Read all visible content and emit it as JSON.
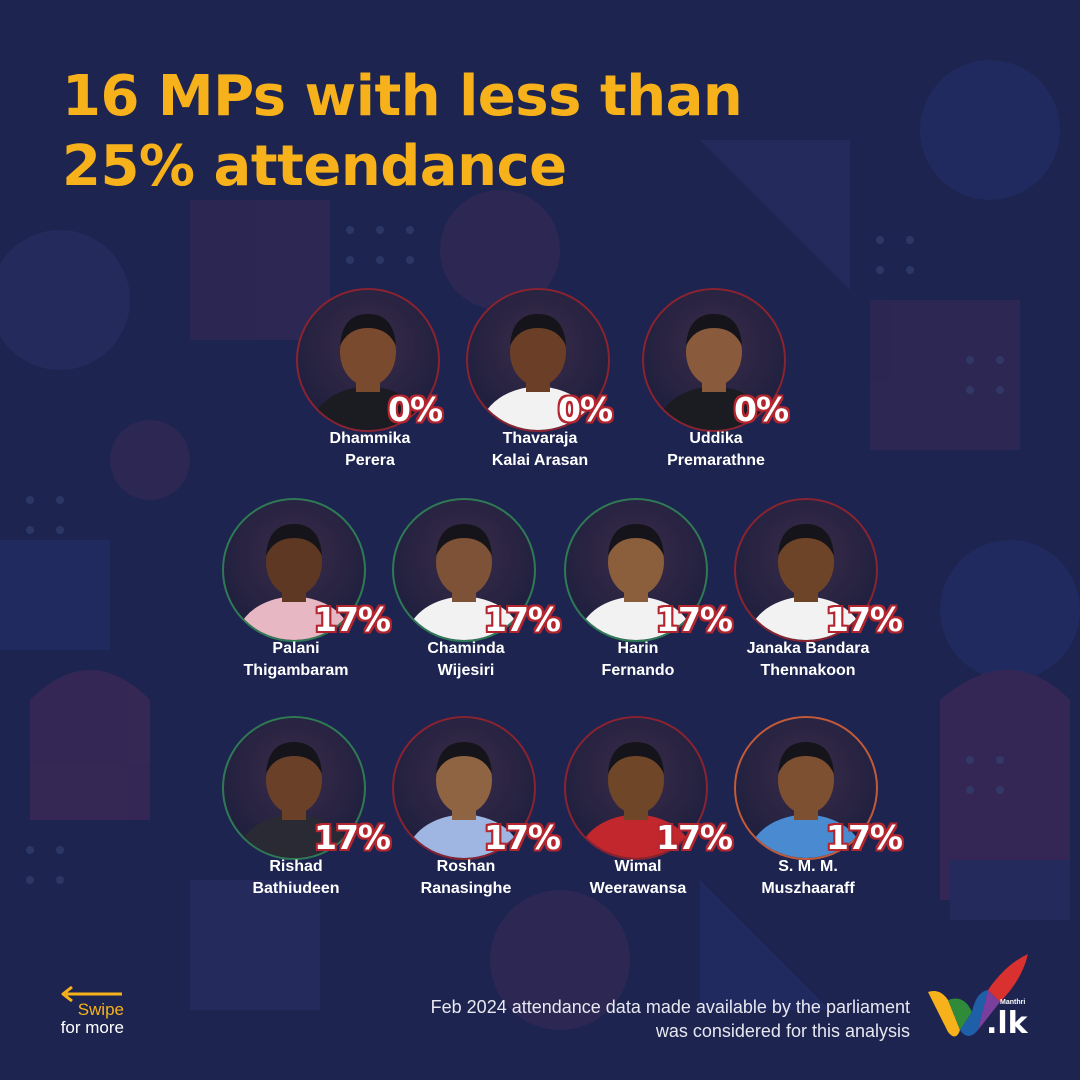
{
  "title": "16 MPs with less than 25% attendance",
  "people": [
    {
      "first": "Dhammika",
      "last": "Perera",
      "attendance": "0%",
      "ring": "red"
    },
    {
      "first": "Thavaraja",
      "last": "Kalai Arasan",
      "attendance": "0%",
      "ring": "red"
    },
    {
      "first": "Uddika",
      "last": "Premarathne",
      "attendance": "0%",
      "ring": "red"
    },
    {
      "first": "Palani",
      "last": "Thigambaram",
      "attendance": "17%",
      "ring": "green"
    },
    {
      "first": "Chaminda",
      "last": "Wijesiri",
      "attendance": "17%",
      "ring": "green"
    },
    {
      "first": "Harin",
      "last": "Fernando",
      "attendance": "17%",
      "ring": "green"
    },
    {
      "first": "Janaka Bandara",
      "last": "Thennakoon",
      "attendance": "17%",
      "ring": "red"
    },
    {
      "first": "Rishad",
      "last": "Bathiudeen",
      "attendance": "17%",
      "ring": "green"
    },
    {
      "first": "Roshan",
      "last": "Ranasinghe",
      "attendance": "17%",
      "ring": "red"
    },
    {
      "first": "Wimal",
      "last": "Weerawansa",
      "attendance": "17%",
      "ring": "red"
    },
    {
      "first": "S. M. M.",
      "last": "Muszhaaraff",
      "attendance": "17%",
      "ring": "orange"
    }
  ],
  "swipe": {
    "line1": "Swipe",
    "line2": "for more"
  },
  "footnote": {
    "line1": "Feb 2024 attendance data made available by the parliament",
    "line2": "was considered for this analysis"
  },
  "logo": {
    "small": "Manthri",
    "main": ".lk"
  },
  "colors": {
    "background": "#1d2450",
    "title": "#f7b21b",
    "percent_outline": "#b3262f",
    "ring_red": "#8a2330",
    "ring_green": "#2f7a55",
    "ring_orange": "#c25a3a"
  },
  "icons": {
    "swipe": "arrow-left-icon",
    "logo": "manthri-check-logo"
  }
}
